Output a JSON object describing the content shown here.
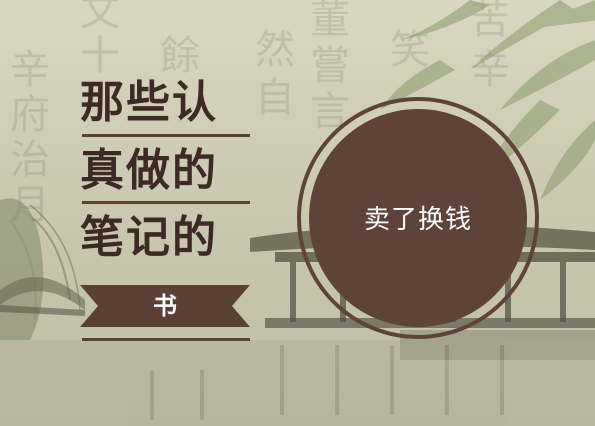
{
  "title": {
    "line1": "那些认",
    "line2": "真做的",
    "line3": "笔记的"
  },
  "ribbon": {
    "label": "书"
  },
  "badge": {
    "label": "卖了换钱"
  },
  "background_chars": [
    "辛",
    "府",
    "治",
    "月",
    "文",
    "十",
    "餘",
    "然",
    "自",
    "董",
    "嘗",
    "言",
    "笑",
    "苦",
    "辛"
  ],
  "colors": {
    "title": "#3e2a25",
    "accent": "#5a4037",
    "badge_fill": "#5e433b",
    "background": "#d9d6c2"
  }
}
